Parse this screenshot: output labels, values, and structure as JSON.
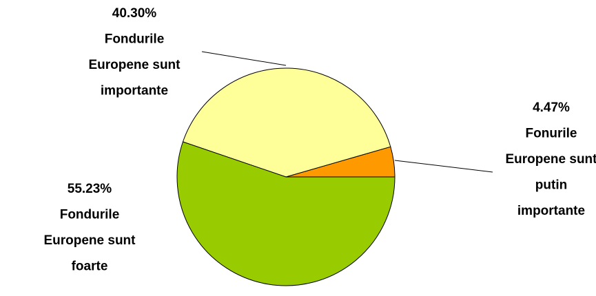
{
  "chart_data": {
    "type": "pie",
    "categories": [
      [
        "Fonurile",
        "Europene sunt",
        "putin",
        "importante"
      ],
      [
        "Fondurile",
        "Europene sunt",
        "importante"
      ],
      [
        "Fondurile",
        "Europene sunt",
        "foarte"
      ]
    ],
    "values": [
      4.47,
      40.3,
      55.23
    ],
    "value_labels": [
      "4.47%",
      "40.30%",
      "55.23%"
    ],
    "colors": [
      "#ff9900",
      "#ffff99",
      "#99cc00"
    ]
  }
}
